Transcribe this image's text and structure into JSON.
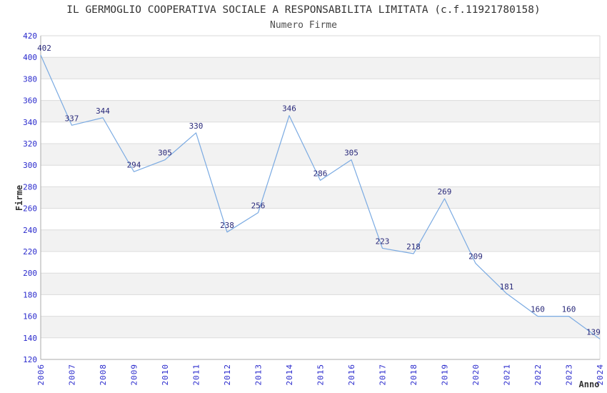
{
  "chart_data": {
    "type": "line",
    "title": "IL GERMOGLIO COOPERATIVA SOCIALE A RESPONSABILITA LIMITATA (c.f.11921780158)",
    "subtitle": "Numero Firme",
    "xlabel": "Anno",
    "ylabel": "Firme",
    "x": [
      "2006",
      "2007",
      "2008",
      "2009",
      "2010",
      "2011",
      "2012",
      "2013",
      "2014",
      "2015",
      "2016",
      "2017",
      "2018",
      "2019",
      "2020",
      "2021",
      "2022",
      "2023",
      "2024"
    ],
    "series": [
      {
        "name": "Numero Firme",
        "values": [
          402,
          337,
          344,
          294,
          305,
          330,
          238,
          256,
          346,
          286,
          305,
          223,
          218,
          269,
          209,
          181,
          160,
          160,
          139
        ]
      }
    ],
    "ylim": [
      120,
      420
    ],
    "ytick_step": 20,
    "yticks": [
      120,
      140,
      160,
      180,
      200,
      220,
      240,
      260,
      280,
      300,
      320,
      340,
      360,
      380,
      400,
      420
    ],
    "grid": "horizontal gridlines with alternating shaded bands",
    "legend": "none",
    "point_labels_visible": true,
    "colors": {
      "line": "#7aaae2",
      "tick_label": "#2929cc",
      "data_label": "#29297a",
      "band_fill": "#f2f2f2",
      "grid_line": "#dcdcdc",
      "border_light": "#d9d9d9",
      "axis_line": "#ababab",
      "title_text": "#333333",
      "background": "#ffffff"
    }
  }
}
